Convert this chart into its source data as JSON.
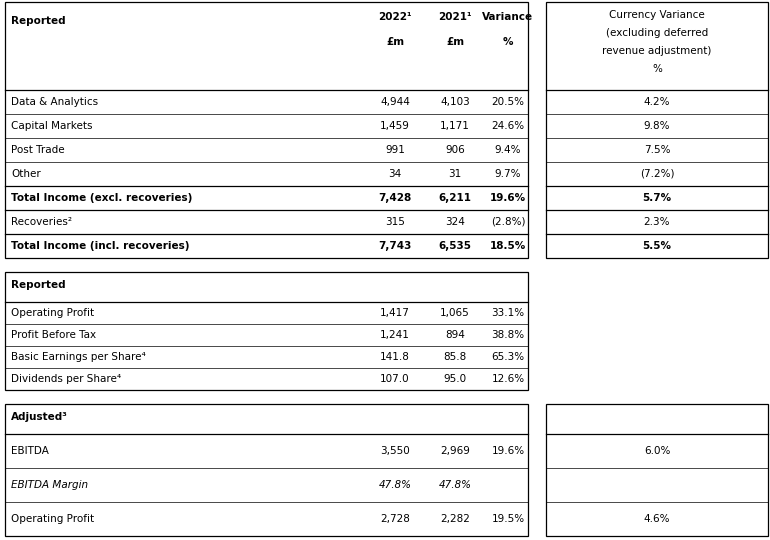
{
  "bg_color": "#ffffff",
  "table1_rows": [
    {
      "label": "Data & Analytics",
      "bold": false,
      "val2022": "4,944",
      "val2021": "4,103",
      "variance": "20.5%",
      "currency": "4.2%"
    },
    {
      "label": "Capital Markets",
      "bold": false,
      "val2022": "1,459",
      "val2021": "1,171",
      "variance": "24.6%",
      "currency": "9.8%"
    },
    {
      "label": "Post Trade",
      "bold": false,
      "val2022": "991",
      "val2021": "906",
      "variance": "9.4%",
      "currency": "7.5%"
    },
    {
      "label": "Other",
      "bold": false,
      "val2022": "34",
      "val2021": "31",
      "variance": "9.7%",
      "currency": "(7.2%)"
    },
    {
      "label": "Total Income (excl. recoveries)",
      "bold": true,
      "val2022": "7,428",
      "val2021": "6,211",
      "variance": "19.6%",
      "currency": "5.7%"
    },
    {
      "label": "Recoveries²",
      "bold": false,
      "val2022": "315",
      "val2021": "324",
      "variance": "(2.8%)",
      "currency": "2.3%"
    },
    {
      "label": "Total Income (incl. recoveries)",
      "bold": true,
      "val2022": "7,743",
      "val2021": "6,535",
      "variance": "18.5%",
      "currency": "5.5%"
    }
  ],
  "table2_rows": [
    {
      "label": "Operating Profit",
      "bold": false,
      "val2022": "1,417",
      "val2021": "1,065",
      "variance": "33.1%"
    },
    {
      "label": "Profit Before Tax",
      "bold": false,
      "val2022": "1,241",
      "val2021": "894",
      "variance": "38.8%"
    },
    {
      "label": "Basic Earnings per Share⁴",
      "bold": false,
      "val2022": "141.8",
      "val2021": "85.8",
      "variance": "65.3%"
    },
    {
      "label": "Dividends per Share⁴",
      "bold": false,
      "val2022": "107.0",
      "val2021": "95.0",
      "variance": "12.6%"
    }
  ],
  "table3_rows": [
    {
      "label": "EBITDA",
      "bold": false,
      "italic": false,
      "val2022": "3,550",
      "val2021": "2,969",
      "variance": "19.6%",
      "currency": "6.0%"
    },
    {
      "label": "EBITDA Margin",
      "bold": false,
      "italic": true,
      "val2022": "47.8%",
      "val2021": "47.8%",
      "variance": "",
      "currency": ""
    },
    {
      "label": "Operating Profit",
      "bold": false,
      "italic": false,
      "val2022": "2,728",
      "val2021": "2,282",
      "variance": "19.5%",
      "currency": "4.6%"
    }
  ]
}
